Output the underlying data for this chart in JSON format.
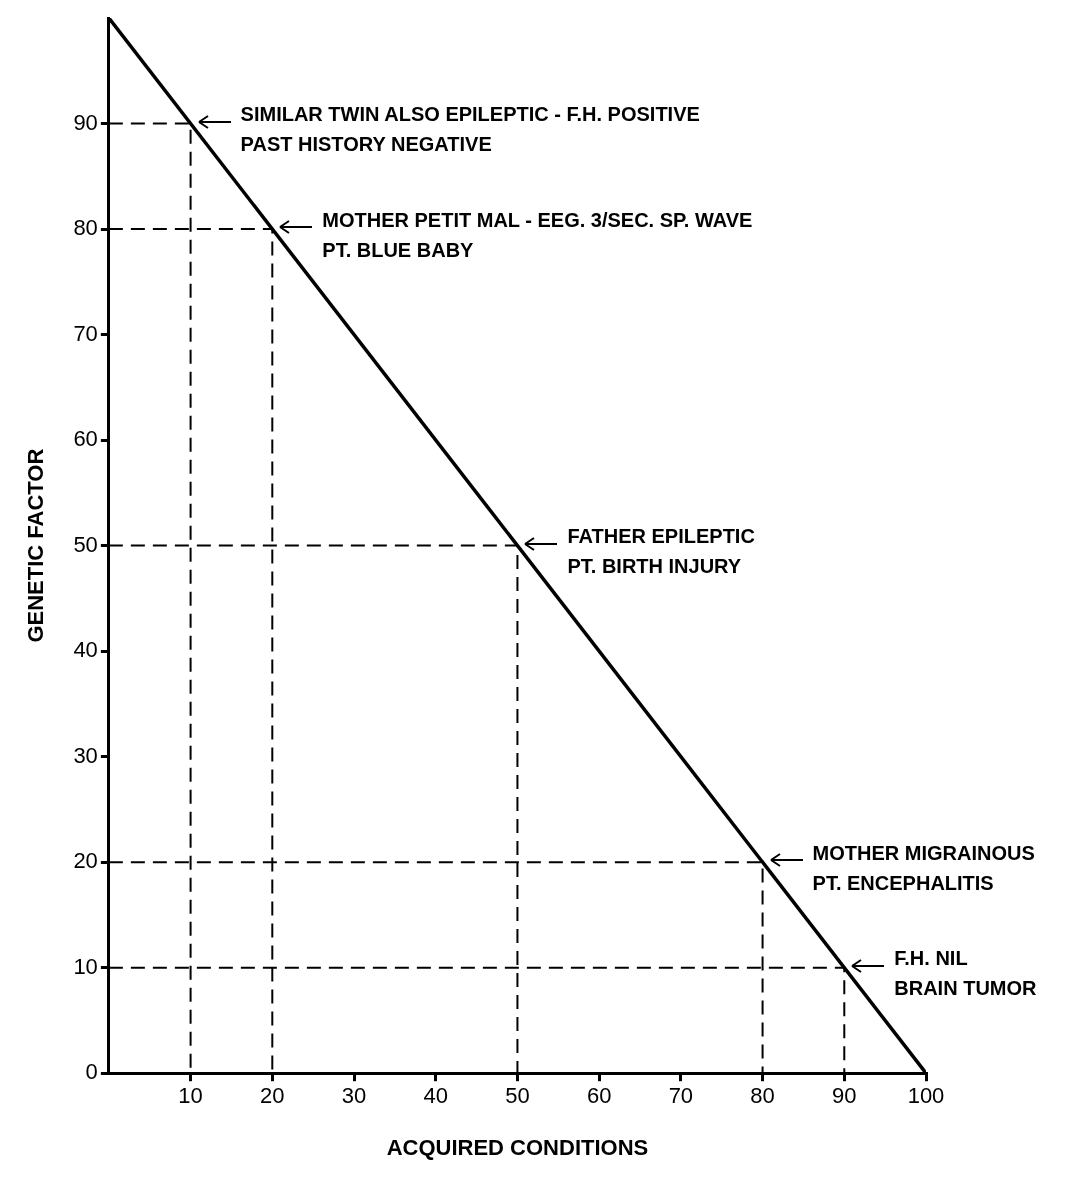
{
  "chart_data": {
    "type": "line",
    "xlabel": "ACQUIRED CONDITIONS",
    "ylabel": "GENETIC FACTOR",
    "xlim": [
      0,
      100
    ],
    "ylim": [
      0,
      100
    ],
    "xticks": [
      10,
      20,
      30,
      40,
      50,
      60,
      70,
      80,
      90,
      100
    ],
    "yticks": [
      0,
      10,
      20,
      30,
      40,
      50,
      60,
      70,
      80,
      90
    ],
    "grid": false,
    "legend": false,
    "marker": "none",
    "series": [
      {
        "color": "#000000",
        "x": [
          0,
          100
        ],
        "values": [
          100,
          0
        ]
      },
      {
        "color": "#000000",
        "line_style": "dashed",
        "x": [
          0,
          10,
          10
        ],
        "values": [
          90,
          90,
          0
        ]
      },
      {
        "color": "#000000",
        "line_style": "dashed",
        "x": [
          0,
          20,
          20
        ],
        "values": [
          80,
          80,
          0
        ]
      },
      {
        "color": "#000000",
        "line_style": "dashed",
        "x": [
          0,
          50,
          50
        ],
        "values": [
          50,
          50,
          0
        ]
      },
      {
        "color": "#000000",
        "line_style": "dashed",
        "x": [
          0,
          80,
          80
        ],
        "values": [
          20,
          20,
          0
        ]
      },
      {
        "color": "#000000",
        "line_style": "dashed",
        "x": [
          0,
          90,
          90
        ],
        "values": [
          10,
          10,
          0
        ]
      }
    ],
    "annotations": [
      {
        "text": "SIMILAR TWIN ALSO EPILEPTIC - F.H. POSITIVE\nPAST HISTORY NEGATIVE",
        "x": 10,
        "y": 90
      },
      {
        "text": "MOTHER PETIT MAL - EEG. 3/SEC. SP. WAVE\nPT. BLUE BABY",
        "x": 20,
        "y": 80
      },
      {
        "text": "FATHER EPILEPTIC\nPT. BIRTH INJURY",
        "x": 50,
        "y": 50
      },
      {
        "text": "MOTHER MIGRAINOUS\nPT. ENCEPHALITIS",
        "x": 80,
        "y": 20
      },
      {
        "text": "F.H. NIL\nBRAIN TUMOR",
        "x": 90,
        "y": 10
      }
    ]
  }
}
